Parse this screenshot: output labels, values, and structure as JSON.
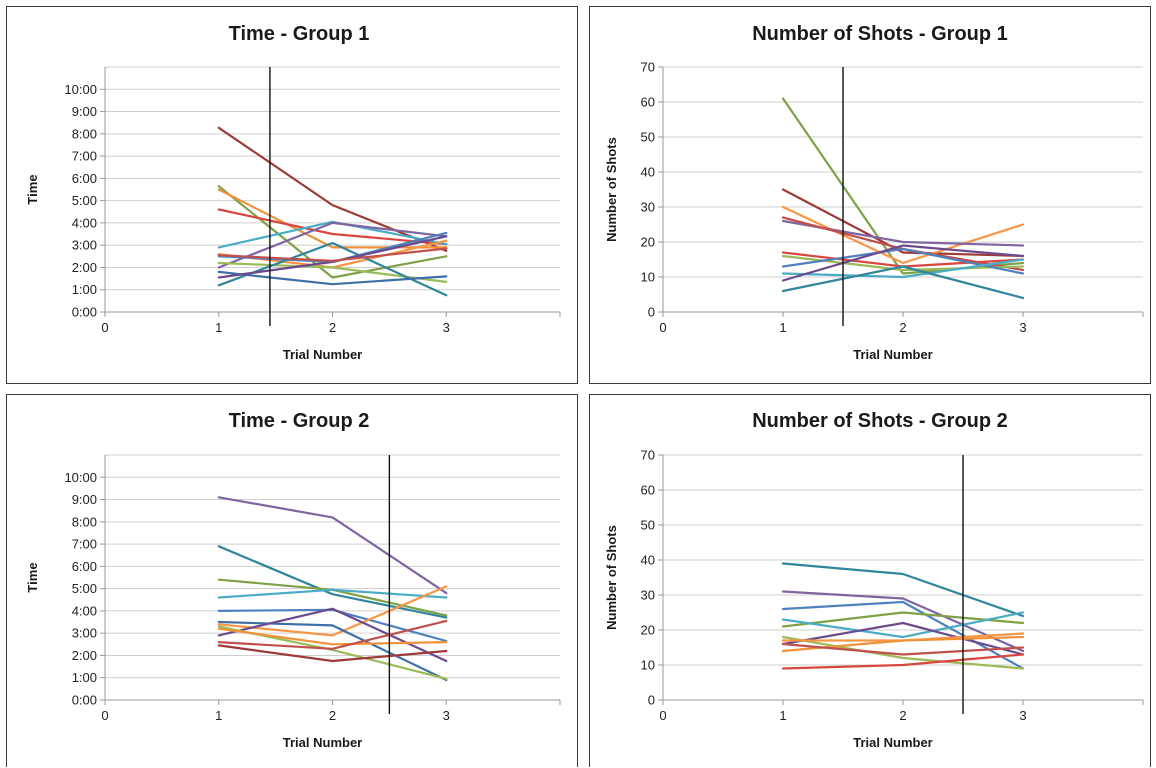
{
  "chart_data": [
    {
      "type": "line",
      "title": "Time - Group 1",
      "xlabel": "Trial Number",
      "ylabel": "Time",
      "x_ticks": [
        "0",
        "1",
        "2",
        "3"
      ],
      "xlim": [
        0,
        4
      ],
      "y_ticks": [
        "0:00",
        "1:00",
        "2:00",
        "3:00",
        "4:00",
        "5:00",
        "6:00",
        "7:00",
        "8:00",
        "9:00",
        "10:00"
      ],
      "ylim": [
        0,
        11
      ],
      "y_unit": "minutes",
      "grid": true,
      "divider_x": 1.45,
      "x": [
        1,
        2,
        3
      ],
      "series": [
        {
          "color": "#9e3a38",
          "values": [
            8.27,
            4.8,
            2.75
          ]
        },
        {
          "color": "#7ea146",
          "values": [
            5.65,
            1.55,
            2.5
          ]
        },
        {
          "color": "#f0923a",
          "values": [
            5.5,
            2.9,
            2.9
          ]
        },
        {
          "color": "#d8473f",
          "values": [
            4.6,
            3.5,
            3.05
          ]
        },
        {
          "color": "#4bacc6",
          "values": [
            2.9,
            4.05,
            3.05
          ]
        },
        {
          "color": "#8064a2",
          "values": [
            2.0,
            4.0,
            3.4
          ]
        },
        {
          "color": "#f79646",
          "values": [
            2.6,
            2.0,
            3.2
          ]
        },
        {
          "color": "#4f81bd",
          "values": [
            2.5,
            2.25,
            3.55
          ]
        },
        {
          "color": "#9bbb59",
          "values": [
            2.2,
            2.0,
            1.35
          ]
        },
        {
          "color": "#31859c",
          "values": [
            1.2,
            3.1,
            0.75
          ]
        },
        {
          "color": "#3f6fa8",
          "values": [
            1.8,
            1.25,
            1.6
          ]
        },
        {
          "color": "#6a4a8c",
          "values": [
            1.55,
            2.25,
            3.4
          ]
        },
        {
          "color": "#c0504d",
          "values": [
            2.55,
            2.3,
            2.85
          ]
        }
      ]
    },
    {
      "type": "line",
      "title": "Number of Shots - Group 1",
      "xlabel": "Trial Number",
      "ylabel": "Number of Shots",
      "x_ticks": [
        "0",
        "1",
        "2",
        "3"
      ],
      "xlim": [
        0,
        4
      ],
      "y_ticks": [
        "0",
        "10",
        "20",
        "30",
        "40",
        "50",
        "60",
        "70"
      ],
      "ylim": [
        0,
        70
      ],
      "grid": true,
      "divider_x": 1.5,
      "x": [
        1,
        2,
        3
      ],
      "series": [
        {
          "color": "#7ea146",
          "values": [
            61,
            11,
            14
          ]
        },
        {
          "color": "#9e3a38",
          "values": [
            35,
            17,
            16
          ]
        },
        {
          "color": "#f79646",
          "values": [
            30,
            14,
            25
          ]
        },
        {
          "color": "#8064a2",
          "values": [
            26,
            20,
            19
          ]
        },
        {
          "color": "#c0504d",
          "values": [
            27,
            18,
            12
          ]
        },
        {
          "color": "#d8473f",
          "values": [
            17,
            13,
            15
          ]
        },
        {
          "color": "#9bbb59",
          "values": [
            16,
            12,
            13
          ]
        },
        {
          "color": "#4f81bd",
          "values": [
            13,
            18,
            11
          ]
        },
        {
          "color": "#4bacc6",
          "values": [
            11,
            10,
            15
          ]
        },
        {
          "color": "#6a4a8c",
          "values": [
            9,
            19,
            16
          ]
        },
        {
          "color": "#31859c",
          "values": [
            6,
            13,
            4
          ]
        }
      ]
    },
    {
      "type": "line",
      "title": "Time - Group 2",
      "xlabel": "Trial Number",
      "ylabel": "Time",
      "x_ticks": [
        "0",
        "1",
        "2",
        "3"
      ],
      "xlim": [
        0,
        4
      ],
      "y_ticks": [
        "0:00",
        "1:00",
        "2:00",
        "3:00",
        "4:00",
        "5:00",
        "6:00",
        "7:00",
        "8:00",
        "9:00",
        "10:00"
      ],
      "ylim": [
        0,
        11
      ],
      "y_unit": "minutes",
      "grid": true,
      "divider_x": 2.5,
      "x": [
        1,
        2,
        3
      ],
      "series": [
        {
          "color": "#8064a2",
          "values": [
            9.1,
            8.2,
            4.8
          ]
        },
        {
          "color": "#31859c",
          "values": [
            6.9,
            4.75,
            3.7
          ]
        },
        {
          "color": "#7ea146",
          "values": [
            5.4,
            4.95,
            3.8
          ]
        },
        {
          "color": "#4bacc6",
          "values": [
            4.6,
            4.95,
            4.6
          ]
        },
        {
          "color": "#4f81bd",
          "values": [
            4.0,
            4.05,
            2.65
          ]
        },
        {
          "color": "#f79646",
          "values": [
            3.4,
            2.9,
            5.1
          ]
        },
        {
          "color": "#3f6fa8",
          "values": [
            3.5,
            3.35,
            0.9
          ]
        },
        {
          "color": "#6a4a8c",
          "values": [
            2.9,
            4.1,
            1.75
          ]
        },
        {
          "color": "#9bbb59",
          "values": [
            3.3,
            2.25,
            0.95
          ]
        },
        {
          "color": "#f0923a",
          "values": [
            3.2,
            2.5,
            2.6
          ]
        },
        {
          "color": "#c0504d",
          "values": [
            2.6,
            2.3,
            3.55
          ]
        },
        {
          "color": "#9e3a38",
          "values": [
            2.45,
            1.75,
            2.2
          ]
        }
      ]
    },
    {
      "type": "line",
      "title": "Number of Shots - Group 2",
      "xlabel": "Trial Number",
      "ylabel": "Number of Shots",
      "x_ticks": [
        "0",
        "1",
        "2",
        "3"
      ],
      "xlim": [
        0,
        4
      ],
      "y_ticks": [
        "0",
        "10",
        "20",
        "30",
        "40",
        "50",
        "60",
        "70"
      ],
      "ylim": [
        0,
        70
      ],
      "grid": true,
      "divider_x": 2.5,
      "x": [
        1,
        2,
        3
      ],
      "series": [
        {
          "color": "#31859c",
          "values": [
            39,
            36,
            24
          ]
        },
        {
          "color": "#8064a2",
          "values": [
            31,
            29,
            14
          ]
        },
        {
          "color": "#4f81bd",
          "values": [
            26,
            28,
            9
          ]
        },
        {
          "color": "#7ea146",
          "values": [
            21,
            25,
            22
          ]
        },
        {
          "color": "#4bacc6",
          "values": [
            23,
            18,
            25
          ]
        },
        {
          "color": "#6a4a8c",
          "values": [
            16,
            22,
            13
          ]
        },
        {
          "color": "#9bbb59",
          "values": [
            18,
            12,
            9
          ]
        },
        {
          "color": "#f79646",
          "values": [
            17,
            17,
            19
          ]
        },
        {
          "color": "#f0923a",
          "values": [
            14,
            17,
            18
          ]
        },
        {
          "color": "#c0504d",
          "values": [
            16,
            13,
            15
          ]
        },
        {
          "color": "#d8473f",
          "values": [
            9,
            10,
            13
          ]
        }
      ]
    }
  ]
}
